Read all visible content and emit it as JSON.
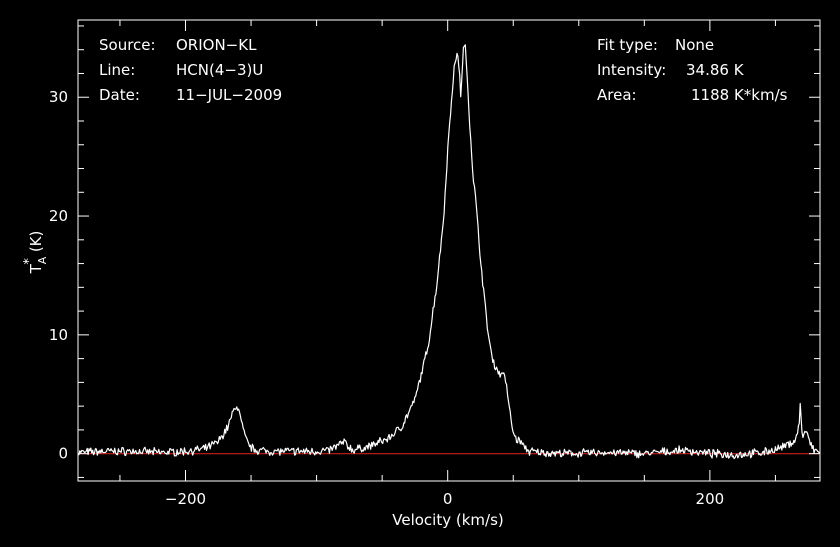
{
  "chart_data": {
    "type": "line",
    "title": "",
    "xlabel": "Velocity (km/s)",
    "ylabel": {
      "base": "T",
      "superscript": "*",
      "subscript": "A",
      "unit": "(K)"
    },
    "xlim": [
      -282,
      284
    ],
    "ylim": [
      -2.3,
      36.5
    ],
    "xticks": [
      -200,
      0,
      200
    ],
    "xtick_labels": [
      "−200",
      "0",
      "200"
    ],
    "yticks": [
      0,
      10,
      20,
      30
    ],
    "ytick_labels": [
      "0",
      "10",
      "20",
      "30"
    ],
    "baseline": 0,
    "grid": false,
    "info_left": [
      {
        "label": "Source:",
        "value": "ORION−KL"
      },
      {
        "label": "Line:",
        "value": "HCN(4−3)U"
      },
      {
        "label": "Date:",
        "value": "11−JUL−2009"
      }
    ],
    "info_right": [
      {
        "label": "Fit type:",
        "value": "None"
      },
      {
        "label": "Intensity:",
        "value": "34.86 K"
      },
      {
        "label": "Area:",
        "value": "1188 K*km/s"
      }
    ],
    "series": [
      {
        "x": [
          -282,
          -260,
          -240,
          -220,
          -200,
          -185,
          -175,
          -168,
          -164,
          -161,
          -159,
          -157,
          -154,
          -150,
          -145,
          -135,
          -120,
          -100,
          -90,
          -82,
          -79,
          -76,
          -72,
          -60,
          -45,
          -35,
          -25,
          -15,
          -8,
          -3,
          0,
          3,
          5,
          7,
          9,
          10,
          11,
          12,
          13,
          14,
          15,
          17,
          19,
          22,
          25,
          28,
          31,
          34,
          37,
          40,
          42,
          44,
          46,
          48,
          50,
          52,
          54,
          56,
          58,
          62,
          70,
          90,
          120,
          150,
          180,
          200,
          220,
          240,
          255,
          262,
          266,
          268,
          269,
          270,
          271,
          273,
          276,
          279,
          284
        ],
        "y": [
          0.1,
          0.2,
          0.2,
          0.1,
          0.2,
          0.4,
          1.0,
          2.2,
          3.4,
          4.1,
          3.5,
          2.5,
          1.2,
          0.5,
          0.3,
          0.2,
          0.2,
          0.2,
          0.3,
          0.8,
          1.0,
          0.6,
          0.3,
          0.6,
          1.3,
          2.3,
          4.5,
          9.0,
          14.5,
          20.0,
          25.5,
          30.0,
          32.5,
          33.6,
          32.5,
          30.0,
          31.8,
          34.0,
          34.86,
          33.0,
          31.5,
          27.5,
          24.0,
          20.5,
          16.5,
          13.0,
          10.0,
          8.0,
          7.2,
          6.6,
          7.0,
          6.2,
          4.8,
          3.0,
          1.8,
          1.3,
          1.1,
          1.0,
          0.6,
          0.2,
          0.1,
          0.0,
          0.1,
          0.0,
          0.3,
          0.0,
          -0.1,
          0.1,
          0.5,
          0.9,
          1.3,
          2.5,
          4.3,
          2.0,
          1.4,
          2.0,
          1.0,
          0.3,
          0.1
        ]
      }
    ]
  }
}
